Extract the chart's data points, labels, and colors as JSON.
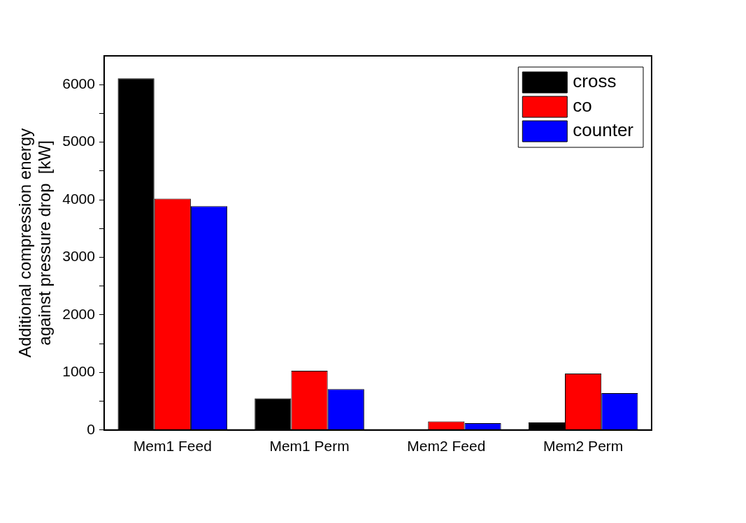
{
  "chart_data": {
    "type": "bar",
    "ylabel": "Additional compression energy\nagainst pressure drop  [kW]",
    "categories": [
      "Mem1 Feed",
      "Mem1 Perm",
      "Mem2 Feed",
      "Mem2 Perm"
    ],
    "series": [
      {
        "name": "cross",
        "color": "#000000",
        "values": [
          6110,
          550,
          null,
          130
        ]
      },
      {
        "name": "co",
        "color": "#ff0000",
        "values": [
          4020,
          1030,
          150,
          980
        ]
      },
      {
        "name": "counter",
        "color": "#0000ff",
        "values": [
          3890,
          710,
          120,
          640
        ]
      }
    ],
    "ylim": [
      0,
      6500
    ],
    "yticks": [
      0,
      {
        "value": 500,
        "label": null
      },
      1000,
      {
        "value": 1500,
        "label": null
      },
      2000,
      {
        "value": 2500,
        "label": null
      },
      3000,
      {
        "value": 3500,
        "label": null
      },
      4000,
      {
        "value": 4500,
        "label": null
      },
      5000,
      {
        "value": 5500,
        "label": null
      },
      6000
    ],
    "grid": false,
    "legend": "top right"
  }
}
